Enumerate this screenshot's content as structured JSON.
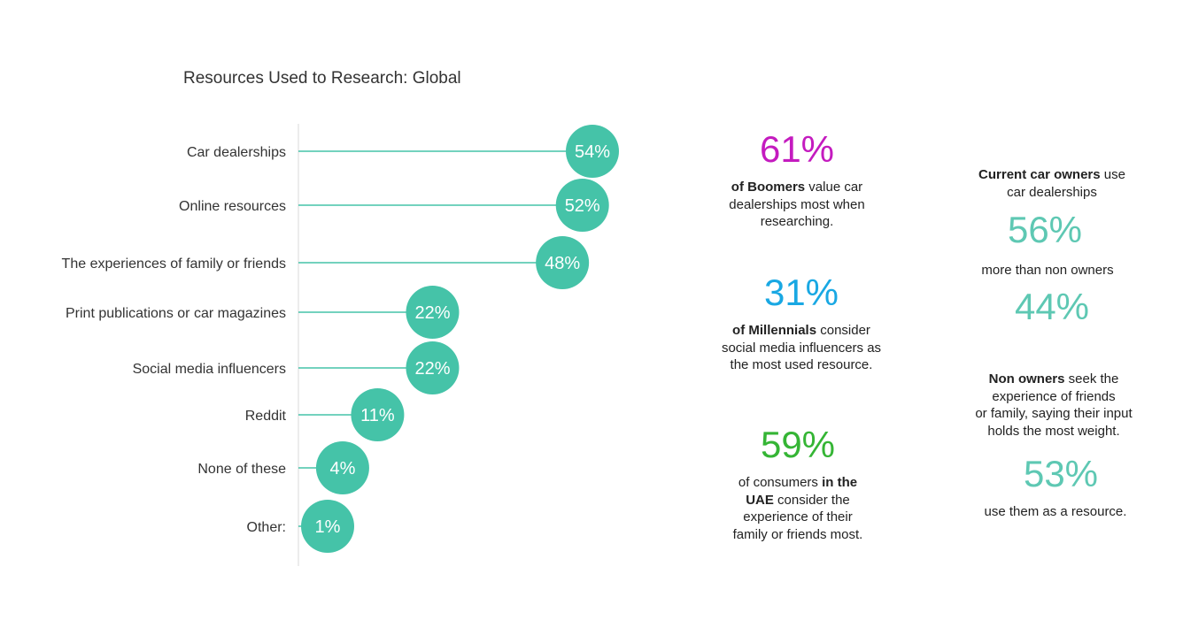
{
  "chart_data": {
    "type": "lollipop",
    "title": "Resources Used to Research: Global",
    "categories": [
      "Car dealerships",
      "Online resources",
      "The experiences of family or friends",
      "Print publications or car magazines",
      "Social media influencers",
      "Reddit",
      "None of these",
      "Other:"
    ],
    "values": [
      54,
      52,
      48,
      22,
      22,
      11,
      4,
      1
    ],
    "value_labels": [
      "54%",
      "52%",
      "48%",
      "22%",
      "22%",
      "11%",
      "4%",
      "1%"
    ],
    "unit": "%",
    "grid": false,
    "legend": "none",
    "colors": {
      "marker": "#45c3a8",
      "line": "#45c3a8",
      "axis": "#d9d9d9"
    }
  },
  "stats_middle": [
    {
      "value": "61%",
      "color": "#c41bbf",
      "bold": "of Boomers",
      "line1_rest": " value car",
      "line2": "dealerships most when",
      "line3": "researching."
    },
    {
      "value": "31%",
      "color": "#19a8e3",
      "bold": "of Millennials",
      "line1_rest": " consider",
      "line2": "social media influencers as",
      "line3": "the most used resource."
    },
    {
      "value": "59%",
      "color": "#35b535",
      "line1_pre": "of consumers ",
      "bold1": "in the",
      "bold2": "UAE",
      "line2_rest": " consider the",
      "line3": "experience of their",
      "line4": "family or friends most."
    }
  ],
  "stats_right": {
    "owners": {
      "bold": "Current car owners",
      "line1_rest": " use",
      "line2": "car dealerships",
      "value1": "56%",
      "middle_text": "more than non owners",
      "value2": "44%"
    },
    "non_owners": {
      "bold": "Non owners",
      "line1_rest": " seek the",
      "line2": "experience of friends",
      "line3": "or family, saying their input",
      "line4": "holds the most weight.",
      "value": "53%",
      "after": "use them as a resource."
    },
    "color": "#5ec8b3"
  }
}
